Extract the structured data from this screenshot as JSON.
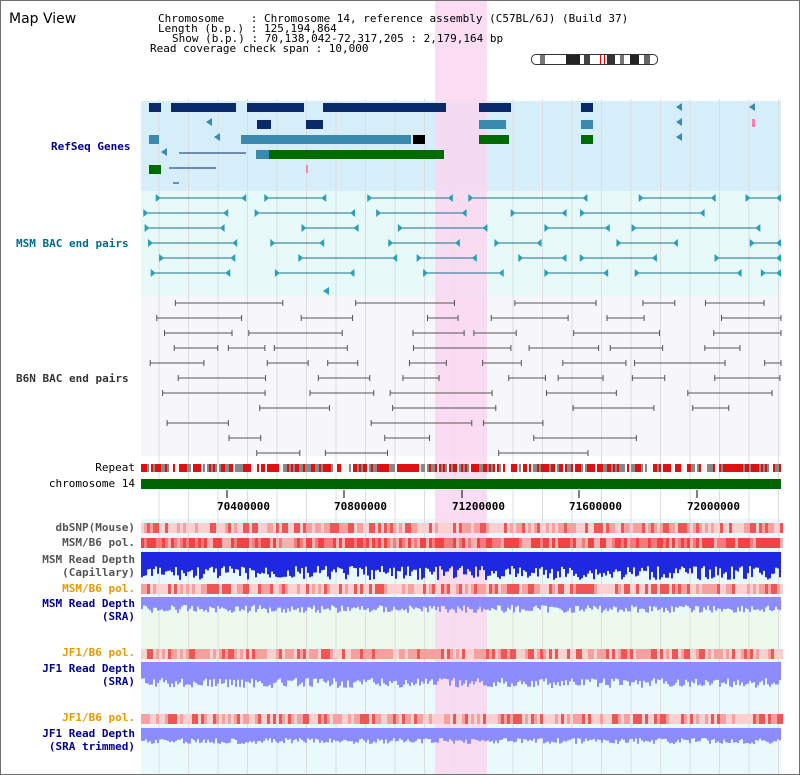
{
  "header": {
    "title": "Map View",
    "info_lines": [
      "Chromosome    : Chromosome 14, reference assembly (C57BL/6J) (Build 37)",
      "Length (b.p.) : 125,194,864",
      "Show (b.p.) : 70,138,042-72,317,205 : 2,179,164 bp",
      "Read coverage check span : 10,000"
    ]
  },
  "tracks": {
    "refseq": {
      "label": "RefSeq Genes",
      "color": "#00008b"
    },
    "msm_bac": {
      "label": "MSM BAC end pairs",
      "color": "#006b8f"
    },
    "b6n_bac": {
      "label": "B6N BAC end pairs",
      "color": "#333333"
    },
    "repeat": {
      "label": "Repeat"
    },
    "chromosome": {
      "label": "chromosome 14"
    },
    "axis_ticks": [
      "70400000",
      "70800000",
      "71200000",
      "71600000",
      "72000000"
    ],
    "dbsnp": {
      "label": "dbSNP(Mouse)"
    },
    "msm_b6_pol_1": {
      "label": "MSM/B6 pol."
    },
    "msm_depth_cap": {
      "line1": "MSM Read Depth",
      "line2": "(Capillary)"
    },
    "msm_b6_pol_2": {
      "label": "MSM/B6 pol."
    },
    "msm_depth_sra": {
      "line1": "MSM Read Depth",
      "line2": "(SRA)"
    },
    "jf1_b6_pol_1": {
      "label": "JF1/B6 pol."
    },
    "jf1_depth_sra": {
      "line1": "JF1 Read Depth",
      "line2": "(SRA)"
    },
    "jf1_b6_pol_2": {
      "label": "JF1/B6 pol."
    },
    "jf1_depth_trim": {
      "line1": "JF1 Read Depth",
      "line2": "(SRA trimmed)"
    }
  },
  "colors": {
    "refseq_bg": "#d6eef9",
    "msm_bg": "#e8f9fa",
    "b6n_bg": "#f6f6fb",
    "highlight": "#f9d7f0",
    "chrom": "#006400",
    "depth_blue": "#1e28e0",
    "depth_light": "#8c8cff",
    "pol_red": "#ee3333",
    "orange_label": "#e89a00",
    "navy_label": "#00008b"
  }
}
